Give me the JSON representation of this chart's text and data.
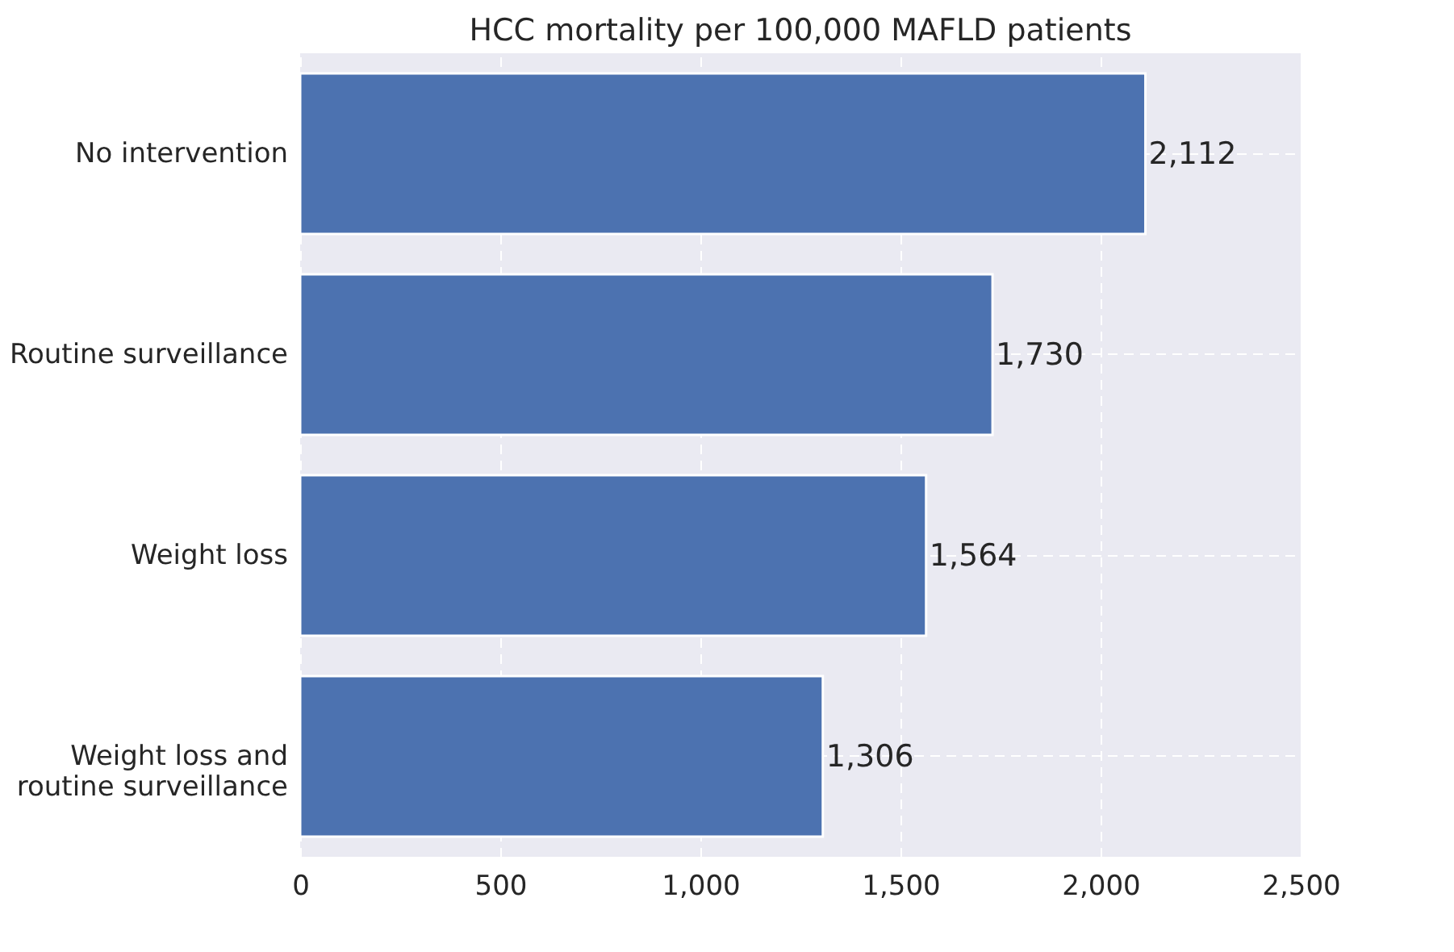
{
  "chart_data": {
    "type": "bar",
    "orientation": "horizontal",
    "title": "HCC mortality per 100,000 MAFLD patients",
    "categories": [
      "No intervention",
      "Routine surveillance",
      "Weight loss",
      "Weight loss and\nroutine surveillance"
    ],
    "values": [
      2112,
      1730,
      1564,
      1306
    ],
    "value_labels": [
      "2,112",
      "1,730",
      "1,564",
      "1,306"
    ],
    "color": "#4c72b0",
    "xlim": [
      0,
      2500
    ],
    "xticks": [
      0,
      500,
      {
        "value": 1000,
        "label": "1,000"
      },
      {
        "value": 1500,
        "label": "1,500"
      },
      {
        "value": 2000,
        "label": "2,000"
      },
      {
        "value": 2500,
        "label": "2,500"
      }
    ],
    "grid": true
  }
}
